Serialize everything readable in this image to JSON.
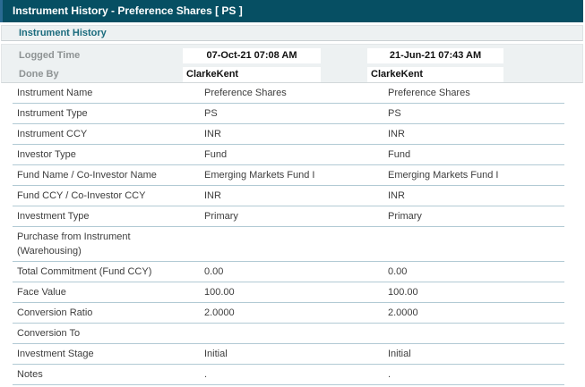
{
  "title_bar": {
    "title": "Instrument History - Preference Shares [ PS ]"
  },
  "section_header": {
    "title": "Instrument History"
  },
  "history_header": {
    "logged_time_label": "Logged Time",
    "done_by_label": "Done By",
    "versions": [
      {
        "logged_time": "07-Oct-21 07:08 AM",
        "done_by": "ClarkeKent"
      },
      {
        "logged_time": "21-Jun-21 07:43 AM",
        "done_by": "ClarkeKent"
      }
    ]
  },
  "table": {
    "rows": [
      {
        "label": "Instrument Name",
        "values": [
          "Preference Shares",
          "Preference Shares"
        ]
      },
      {
        "label": "Instrument Type",
        "values": [
          "PS",
          "PS"
        ]
      },
      {
        "label": "Instrument CCY",
        "values": [
          "INR",
          "INR"
        ]
      },
      {
        "label": "Investor Type",
        "values": [
          "Fund",
          "Fund"
        ]
      },
      {
        "label": "Fund Name / Co-Investor Name",
        "values": [
          "Emerging Markets Fund I",
          "Emerging Markets Fund I"
        ]
      },
      {
        "label": "Fund CCY / Co-Investor CCY",
        "values": [
          "INR",
          "INR"
        ]
      },
      {
        "label": "Investment Type",
        "values": [
          "Primary",
          "Primary"
        ]
      },
      {
        "label": "Purchase from Instrument (Warehousing)",
        "values": [
          "",
          ""
        ]
      },
      {
        "label": "Total Commitment (Fund CCY)",
        "values": [
          "0.00",
          "0.00"
        ]
      },
      {
        "label": "Face Value",
        "values": [
          "100.00",
          "100.00"
        ]
      },
      {
        "label": "Conversion Ratio",
        "values": [
          "2.0000",
          "2.0000"
        ]
      },
      {
        "label": "Conversion To",
        "values": [
          "",
          ""
        ]
      },
      {
        "label": "Investment Stage",
        "values": [
          "Initial",
          "Initial"
        ]
      },
      {
        "label": "Notes",
        "values": [
          ".",
          "."
        ]
      }
    ]
  },
  "colors": {
    "titlebar_bg": "#064f63",
    "titlebar_accent_stripe": "#2a6b93",
    "panel_bg": "#edf1f2",
    "section_title_text": "#1a6b7d",
    "muted_label_text": "#8e9394",
    "row_separator": "#b2cad4",
    "body_text": "#3d3d3d"
  }
}
